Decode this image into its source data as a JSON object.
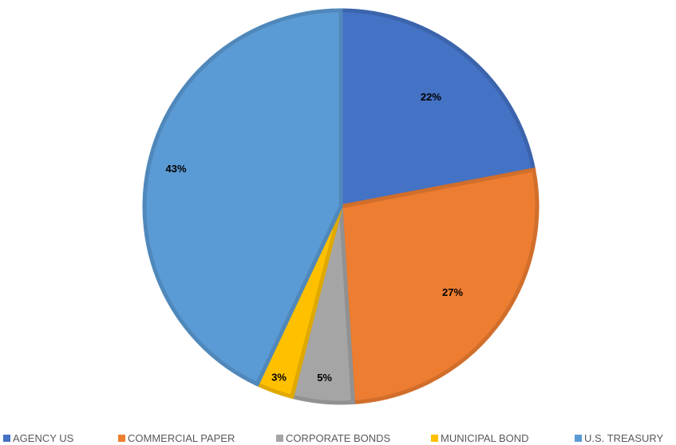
{
  "chart_data": {
    "type": "pie",
    "title": "",
    "legend_position": "bottom",
    "slices": [
      {
        "label": "AGENCY US",
        "value": 22,
        "display": "22%",
        "color": "#4472C4"
      },
      {
        "label": "COMMERCIAL PAPER",
        "value": 27,
        "display": "27%",
        "color": "#ED7D31"
      },
      {
        "label": "CORPORATE BONDS",
        "value": 5,
        "display": "5%",
        "color": "#A5A5A5"
      },
      {
        "label": "MUNICIPAL BOND",
        "value": 3,
        "display": "3%",
        "color": "#FFC000"
      },
      {
        "label": "U.S. TREASURY",
        "value": 43,
        "display": "43%",
        "color": "#5B9BD5"
      }
    ]
  }
}
